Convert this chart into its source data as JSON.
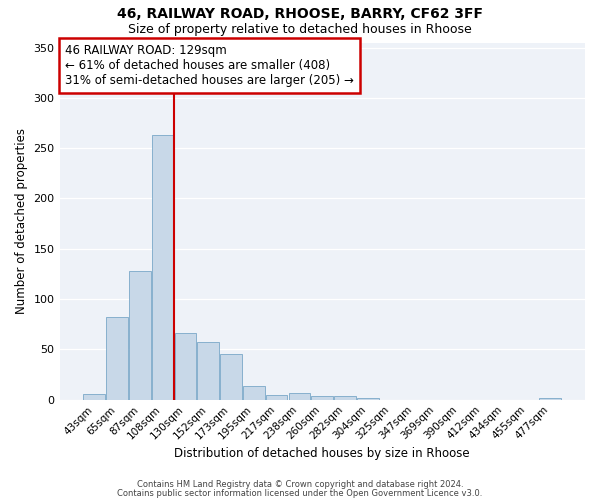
{
  "title1": "46, RAILWAY ROAD, RHOOSE, BARRY, CF62 3FF",
  "title2": "Size of property relative to detached houses in Rhoose",
  "xlabel": "Distribution of detached houses by size in Rhoose",
  "ylabel": "Number of detached properties",
  "bar_color": "#c8d8e8",
  "bar_edge_color": "#7aa8c8",
  "grid_color": "#c8d8e8",
  "background_color": "#eef2f8",
  "tick_labels": [
    "43sqm",
    "65sqm",
    "87sqm",
    "108sqm",
    "130sqm",
    "152sqm",
    "173sqm",
    "195sqm",
    "217sqm",
    "238sqm",
    "260sqm",
    "282sqm",
    "304sqm",
    "325sqm",
    "347sqm",
    "369sqm",
    "390sqm",
    "412sqm",
    "434sqm",
    "455sqm",
    "477sqm"
  ],
  "bar_heights": [
    6,
    82,
    128,
    263,
    66,
    57,
    45,
    14,
    5,
    7,
    4,
    4,
    2,
    0,
    0,
    0,
    0,
    0,
    0,
    0,
    2
  ],
  "vline_color": "#cc0000",
  "annotation_line1": "46 RAILWAY ROAD: 129sqm",
  "annotation_line2": "← 61% of detached houses are smaller (408)",
  "annotation_line3": "31% of semi-detached houses are larger (205) →",
  "annotation_box_color": "#cc0000",
  "ylim": [
    0,
    355
  ],
  "yticks": [
    0,
    50,
    100,
    150,
    200,
    250,
    300,
    350
  ],
  "footer1": "Contains HM Land Registry data © Crown copyright and database right 2024.",
  "footer2": "Contains public sector information licensed under the Open Government Licence v3.0."
}
